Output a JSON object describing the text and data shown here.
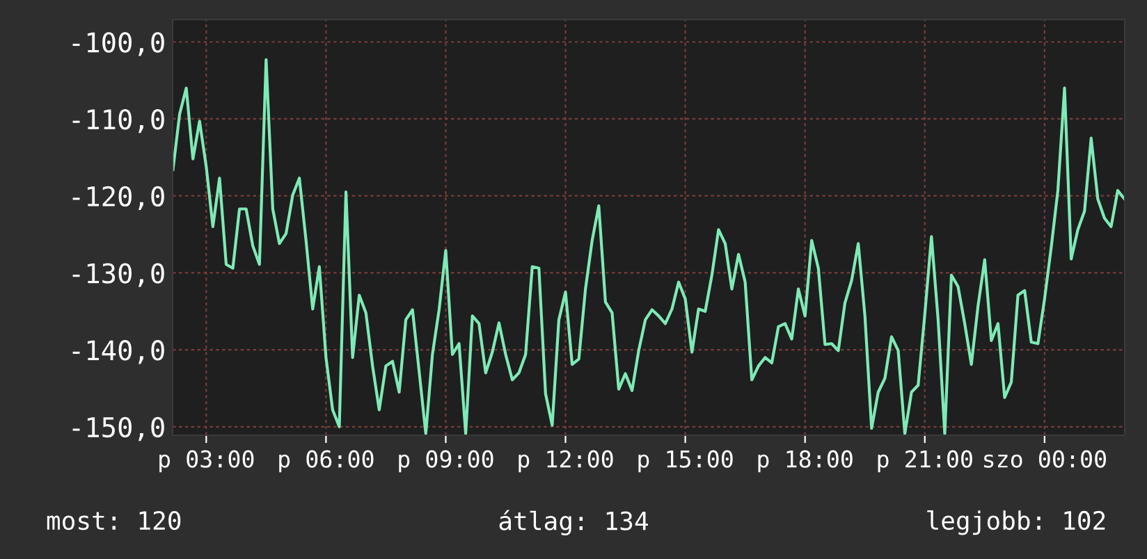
{
  "chart_data": {
    "type": "line",
    "color": "#7eeab6",
    "categories": [
      null,
      null,
      null,
      null,
      null,
      "p 03:00",
      null,
      null,
      null,
      null,
      null,
      null,
      null,
      null,
      null,
      null,
      null,
      null,
      null,
      null,
      null,
      null,
      null,
      "p 06:00",
      null,
      null,
      null,
      null,
      null,
      null,
      null,
      null,
      null,
      null,
      null,
      null,
      null,
      null,
      null,
      null,
      null,
      "p 09:00",
      null,
      null,
      null,
      null,
      null,
      null,
      null,
      null,
      null,
      null,
      null,
      null,
      null,
      null,
      null,
      null,
      null,
      "p 12:00",
      null,
      null,
      null,
      null,
      null,
      null,
      null,
      null,
      null,
      null,
      null,
      null,
      null,
      null,
      null,
      null,
      null,
      "p 15:00",
      null,
      null,
      null,
      null,
      null,
      null,
      null,
      null,
      null,
      null,
      null,
      null,
      null,
      null,
      null,
      null,
      null,
      "p 18:00",
      null,
      null,
      null,
      null,
      null,
      null,
      null,
      null,
      null,
      null,
      null,
      null,
      null,
      null,
      null,
      null,
      null,
      "p 21:00",
      null,
      null,
      null,
      null,
      null,
      null,
      null,
      null,
      null,
      null,
      null,
      null,
      null,
      null,
      null,
      null,
      null,
      "szo 00:00",
      null,
      null,
      null,
      null,
      null,
      null,
      null,
      null,
      null,
      null,
      null,
      null
    ],
    "values": [
      -116.6,
      -109.4,
      -106.0,
      -115.2,
      -110.3,
      -116.2,
      -124.0,
      -117.7,
      -128.9,
      -129.4,
      -121.7,
      -121.7,
      -126.5,
      -128.9,
      -102.3,
      -121.7,
      -126.2,
      -124.9,
      -119.9,
      -117.7,
      -125.8,
      -134.7,
      -129.2,
      -141.0,
      -147.8,
      -150.0,
      -119.5,
      -141.0,
      -132.9,
      -135.2,
      -142.1,
      -147.8,
      -142.1,
      -141.5,
      -145.5,
      -136.1,
      -134.8,
      -142.8,
      -150.9,
      -140.6,
      -134.8,
      -127.1,
      -140.6,
      -139.2,
      -150.9,
      -135.6,
      -136.6,
      -143.0,
      -140.3,
      -136.5,
      -140.6,
      -143.9,
      -143.0,
      -140.6,
      -129.2,
      -129.4,
      -145.7,
      -149.8,
      -136.1,
      -132.5,
      -141.9,
      -141.2,
      -132.1,
      -125.8,
      -121.3,
      -133.8,
      -135.2,
      -145.1,
      -143.1,
      -145.3,
      -140.1,
      -136.1,
      -134.8,
      -135.6,
      -136.6,
      -134.7,
      -131.2,
      -133.4,
      -140.3,
      -134.7,
      -135.0,
      -130.3,
      -124.4,
      -126.2,
      -132.1,
      -127.6,
      -131.2,
      -143.9,
      -142.1,
      -141.0,
      -141.7,
      -137.0,
      -136.6,
      -138.6,
      -132.1,
      -135.6,
      -125.8,
      -129.4,
      -139.3,
      -139.2,
      -140.1,
      -133.9,
      -131.0,
      -126.2,
      -135.6,
      -150.2,
      -145.5,
      -143.7,
      -138.3,
      -140.1,
      -150.9,
      -145.5,
      -144.6,
      -135.4,
      -125.3,
      -136.1,
      -150.9,
      -130.3,
      -131.8,
      -136.6,
      -141.9,
      -134.3,
      -128.3,
      -138.8,
      -136.6,
      -146.2,
      -144.2,
      -132.9,
      -132.3,
      -139.0,
      -139.2,
      -133.4,
      -126.7,
      -119.3,
      -106.0,
      -128.2,
      -124.4,
      -122.0,
      -112.5,
      -120.4,
      -122.9,
      -124.0,
      -119.3,
      -120.4
    ],
    "ylim": [
      -151.1,
      -97.1
    ],
    "yticks": [
      {
        "value": -150,
        "label": "-150,0"
      },
      {
        "value": -140,
        "label": "-140,0"
      },
      {
        "value": -130,
        "label": "-130,0"
      },
      {
        "value": -120,
        "label": "-120,0"
      },
      {
        "value": -110,
        "label": "-110,0"
      },
      {
        "value": -100,
        "label": "-100,0"
      }
    ],
    "grid": true,
    "line_style": "solid",
    "annotations": [
      "most: 120",
      "átlag: 134",
      "legjobb: 102"
    ]
  }
}
